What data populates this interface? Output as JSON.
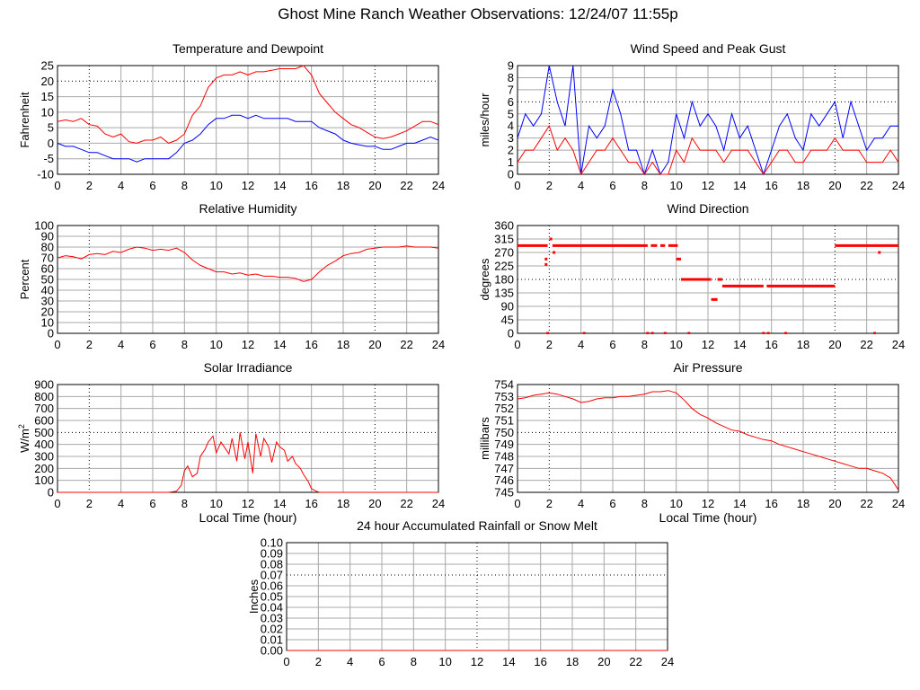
{
  "page": {
    "title": "Ghost Mine Ranch Weather Observations: 12/24/07 11:55p"
  },
  "colors": {
    "red": "#ff0000",
    "blue": "#0000ff",
    "grid": "#a8a8a8",
    "dot": "#000000"
  },
  "chart_data": [
    {
      "id": "temp",
      "type": "line",
      "title": "Temperature and Dewpoint",
      "xlabel": "",
      "ylabel": "Fahrenheit",
      "xlim": [
        0,
        24
      ],
      "ylim": [
        -10,
        25
      ],
      "xticks": [
        "0",
        "2",
        "4",
        "6",
        "8",
        "10",
        "12",
        "14",
        "16",
        "18",
        "20",
        "22",
        "24"
      ],
      "yticks": [
        "25",
        "20",
        "15",
        "10",
        "5",
        "0",
        "-5",
        "-10"
      ],
      "grid": true,
      "series": [
        {
          "name": "Temperature",
          "color": "#ff0000",
          "x": [
            0,
            0.5,
            1,
            1.5,
            2,
            2.5,
            3,
            3.5,
            4,
            4.5,
            5,
            5.5,
            6,
            6.5,
            7,
            7.5,
            8,
            8.5,
            9,
            9.5,
            10,
            10.5,
            11,
            11.5,
            12,
            12.5,
            13,
            13.5,
            14,
            14.5,
            15,
            15.5,
            16,
            16.5,
            17,
            17.5,
            18,
            18.5,
            19,
            19.5,
            20,
            20.5,
            21,
            21.5,
            22,
            22.5,
            23,
            23.5,
            24
          ],
          "values": [
            7,
            7.5,
            7,
            8,
            6,
            5.5,
            3,
            2,
            3,
            0.5,
            0,
            1,
            1,
            2,
            0,
            1,
            3,
            9,
            12,
            18,
            21,
            22,
            22,
            23,
            22,
            23,
            23,
            23.5,
            24,
            24,
            24,
            25,
            22,
            16,
            13,
            10,
            8,
            6,
            5,
            3.5,
            2,
            1.5,
            2,
            3,
            4,
            5.5,
            7,
            7,
            6
          ]
        },
        {
          "name": "Dewpoint",
          "color": "#0000ff",
          "x": [
            0,
            0.5,
            1,
            1.5,
            2,
            2.5,
            3,
            3.5,
            4,
            4.5,
            5,
            5.5,
            6,
            6.5,
            7,
            7.5,
            8,
            8.5,
            9,
            9.5,
            10,
            10.5,
            11,
            11.5,
            12,
            12.5,
            13,
            13.5,
            14,
            14.5,
            15,
            15.5,
            16,
            16.5,
            17,
            17.5,
            18,
            18.5,
            19,
            19.5,
            20,
            20.5,
            21,
            21.5,
            22,
            22.5,
            23,
            23.5,
            24
          ],
          "values": [
            0,
            -1,
            -1,
            -2,
            -3,
            -3,
            -4,
            -5,
            -5,
            -5,
            -6,
            -5,
            -5,
            -5,
            -5,
            -3,
            0,
            1,
            3,
            6,
            8,
            8,
            9,
            9,
            8,
            9,
            8,
            8,
            8,
            8,
            7,
            7,
            7,
            5,
            4,
            3,
            1,
            0,
            -0.5,
            -1,
            -1,
            -2,
            -2,
            -1,
            0,
            0,
            1,
            2,
            1
          ]
        }
      ]
    },
    {
      "id": "wind",
      "type": "line",
      "title": "Wind Speed and Peak Gust",
      "xlabel": "",
      "ylabel": "miles/hour",
      "xlim": [
        0,
        24
      ],
      "ylim": [
        0,
        9
      ],
      "xticks": [
        "0",
        "2",
        "4",
        "6",
        "8",
        "10",
        "12",
        "14",
        "16",
        "18",
        "20",
        "22",
        "24"
      ],
      "yticks": [
        "9",
        "8",
        "7",
        "6",
        "5",
        "4",
        "3",
        "2",
        "1",
        "0"
      ],
      "grid": true,
      "series": [
        {
          "name": "Peak Gust",
          "color": "#0000ff",
          "x": [
            0,
            0.5,
            1,
            1.5,
            2,
            2.5,
            3,
            3.5,
            4,
            4.5,
            5,
            5.5,
            6,
            6.5,
            7,
            7.5,
            8,
            8.5,
            9,
            9.5,
            10,
            10.5,
            11,
            11.5,
            12,
            12.5,
            13,
            13.5,
            14,
            14.5,
            15,
            15.5,
            16,
            16.5,
            17,
            17.5,
            18,
            18.5,
            19,
            19.5,
            20,
            20.5,
            21,
            21.5,
            22,
            22.5,
            23,
            23.5,
            24
          ],
          "values": [
            3,
            5,
            4,
            5,
            9,
            6,
            4,
            9,
            0,
            4,
            3,
            4,
            7,
            5,
            2,
            2,
            0,
            2,
            0,
            1,
            5,
            3,
            6,
            4,
            5,
            4,
            2,
            5,
            3,
            4,
            2,
            0,
            2,
            4,
            5,
            3,
            2,
            5,
            4,
            5,
            6,
            3,
            6,
            4,
            2,
            3,
            3,
            4,
            4
          ]
        },
        {
          "name": "Wind Speed",
          "color": "#ff0000",
          "x": [
            0,
            0.5,
            1,
            1.5,
            2,
            2.5,
            3,
            3.5,
            4,
            4.5,
            5,
            5.5,
            6,
            6.5,
            7,
            7.5,
            8,
            8.5,
            9,
            9.5,
            10,
            10.5,
            11,
            11.5,
            12,
            12.5,
            13,
            13.5,
            14,
            14.5,
            15,
            15.5,
            16,
            16.5,
            17,
            17.5,
            18,
            18.5,
            19,
            19.5,
            20,
            20.5,
            21,
            21.5,
            22,
            22.5,
            23,
            23.5,
            24
          ],
          "values": [
            1,
            2,
            2,
            3,
            4,
            2,
            3,
            2,
            0,
            1,
            2,
            2,
            3,
            2,
            1,
            1,
            0,
            1,
            0,
            0,
            2,
            1,
            3,
            2,
            2,
            2,
            1,
            2,
            2,
            2,
            1,
            0,
            1,
            2,
            2,
            1,
            1,
            2,
            2,
            2,
            3,
            2,
            2,
            2,
            1,
            1,
            1,
            2,
            1
          ]
        }
      ]
    },
    {
      "id": "rh",
      "type": "line",
      "title": "Relative Humidity",
      "xlabel": "",
      "ylabel": "Percent",
      "xlim": [
        0,
        24
      ],
      "ylim": [
        0,
        100
      ],
      "xticks": [
        "0",
        "2",
        "4",
        "6",
        "8",
        "10",
        "12",
        "14",
        "16",
        "18",
        "20",
        "22",
        "24"
      ],
      "yticks": [
        "100",
        "90",
        "80",
        "70",
        "60",
        "50",
        "40",
        "30",
        "20",
        "10",
        "0"
      ],
      "grid": true,
      "series": [
        {
          "name": "Relative Humidity",
          "color": "#ff0000",
          "x": [
            0,
            0.5,
            1,
            1.5,
            2,
            2.5,
            3,
            3.5,
            4,
            4.5,
            5,
            5.5,
            6,
            6.5,
            7,
            7.5,
            8,
            8.5,
            9,
            9.5,
            10,
            10.5,
            11,
            11.5,
            12,
            12.5,
            13,
            13.5,
            14,
            14.5,
            15,
            15.5,
            16,
            16.5,
            17,
            17.5,
            18,
            18.5,
            19,
            19.5,
            20,
            20.5,
            21,
            21.5,
            22,
            22.5,
            23,
            23.5,
            24
          ],
          "values": [
            70,
            72,
            71,
            69,
            73,
            74,
            73,
            76,
            75,
            78,
            80,
            79,
            77,
            78,
            77,
            79,
            75,
            68,
            63,
            60,
            57,
            57,
            55,
            56,
            54,
            55,
            53,
            53,
            52,
            52,
            51,
            48,
            50,
            57,
            63,
            67,
            72,
            74,
            75,
            78,
            79,
            80,
            80,
            80,
            81,
            80,
            80,
            80,
            79
          ]
        }
      ]
    },
    {
      "id": "wdir",
      "type": "scatter",
      "title": "Wind Direction",
      "xlabel": "",
      "ylabel": "degrees",
      "xlim": [
        0,
        24
      ],
      "ylim": [
        0,
        360
      ],
      "xticks": [
        "0",
        "2",
        "4",
        "6",
        "8",
        "10",
        "12",
        "14",
        "16",
        "18",
        "20",
        "22",
        "24"
      ],
      "yticks": [
        "360",
        "315",
        "270",
        "225",
        "180",
        "135",
        "90",
        "45",
        "0"
      ],
      "grid": true,
      "series": [
        {
          "name": "Wind Direction",
          "color": "#ff0000",
          "segments": [
            [
              0,
              1.9,
              293
            ],
            [
              2.2,
              8.2,
              293
            ],
            [
              8.4,
              8.8,
              293
            ],
            [
              9,
              9.3,
              293
            ],
            [
              9.5,
              10.1,
              293
            ],
            [
              10,
              10.3,
              248
            ],
            [
              10.3,
              12.2,
              180
            ],
            [
              12.6,
              12.9,
              180
            ],
            [
              12.2,
              12.6,
              113
            ],
            [
              12.9,
              15.5,
              158
            ],
            [
              15.7,
              20,
              158
            ],
            [
              20,
              24,
              293
            ]
          ],
          "points": [
            [
              1.8,
              248
            ],
            [
              1.8,
              230
            ],
            [
              2.1,
              315
            ],
            [
              2.3,
              270
            ],
            [
              1.9,
              0
            ],
            [
              4.2,
              0
            ],
            [
              8.2,
              0
            ],
            [
              8.5,
              0
            ],
            [
              9.3,
              0
            ],
            [
              10.8,
              0
            ],
            [
              15.5,
              0
            ],
            [
              15.8,
              0
            ],
            [
              16.9,
              0
            ],
            [
              22.5,
              0
            ],
            [
              22.8,
              270
            ]
          ]
        }
      ]
    },
    {
      "id": "solar",
      "type": "line",
      "title": "Solar Irradiance",
      "xlabel": "Local Time (hour)",
      "ylabel": "W/m",
      "ylabel_sup": "2",
      "xlim": [
        0,
        24
      ],
      "ylim": [
        0,
        900
      ],
      "xticks": [
        "0",
        "2",
        "4",
        "6",
        "8",
        "10",
        "12",
        "14",
        "16",
        "18",
        "20",
        "22",
        "24"
      ],
      "yticks": [
        "900",
        "800",
        "700",
        "600",
        "500",
        "400",
        "300",
        "200",
        "100",
        "0"
      ],
      "grid": true,
      "series": [
        {
          "name": "Solar Irradiance",
          "color": "#ff0000",
          "x": [
            0,
            2,
            4,
            6,
            7,
            7.5,
            7.8,
            8,
            8.2,
            8.5,
            8.8,
            9,
            9.3,
            9.5,
            9.8,
            10,
            10.3,
            10.5,
            10.8,
            11,
            11.3,
            11.5,
            11.8,
            12,
            12.3,
            12.5,
            12.8,
            13,
            13.3,
            13.5,
            13.8,
            14,
            14.3,
            14.5,
            14.8,
            15,
            15.3,
            15.5,
            15.8,
            16,
            16.3,
            16.5,
            17,
            18,
            20,
            22,
            24
          ],
          "values": [
            0,
            0,
            0,
            0,
            0,
            10,
            60,
            180,
            220,
            130,
            160,
            300,
            360,
            420,
            470,
            330,
            420,
            380,
            320,
            450,
            260,
            500,
            280,
            420,
            160,
            490,
            300,
            450,
            380,
            250,
            420,
            380,
            350,
            260,
            300,
            240,
            200,
            150,
            90,
            30,
            10,
            0,
            0,
            0,
            0,
            0,
            0
          ]
        }
      ]
    },
    {
      "id": "press",
      "type": "line",
      "title": "Air Pressure",
      "xlabel": "Local Time (hour)",
      "ylabel": "millibars",
      "xlim": [
        0,
        24
      ],
      "ylim": [
        745,
        754
      ],
      "xticks": [
        "0",
        "2",
        "4",
        "6",
        "8",
        "10",
        "12",
        "14",
        "16",
        "18",
        "20",
        "22",
        "24"
      ],
      "yticks": [
        "754",
        "753",
        "752",
        "751",
        "750",
        "749",
        "748",
        "747",
        "746",
        "745"
      ],
      "grid": true,
      "series": [
        {
          "name": "Air Pressure",
          "color": "#ff0000",
          "x": [
            0,
            0.5,
            1,
            1.5,
            2,
            2.5,
            3,
            3.5,
            4,
            4.5,
            5,
            5.5,
            6,
            6.5,
            7,
            7.5,
            8,
            8.5,
            9,
            9.5,
            10,
            10.5,
            11,
            11.5,
            12,
            12.5,
            13,
            13.5,
            14,
            14.5,
            15,
            15.5,
            16,
            16.5,
            17,
            17.5,
            18,
            18.5,
            19,
            19.5,
            20,
            20.5,
            21,
            21.5,
            22,
            22.5,
            23,
            23.5,
            24
          ],
          "values": [
            752.8,
            752.9,
            753.1,
            753.2,
            753.3,
            753.2,
            753,
            752.8,
            752.5,
            752.6,
            752.8,
            752.9,
            752.9,
            753,
            753,
            753.1,
            753.2,
            753.4,
            753.4,
            753.5,
            753.3,
            752.7,
            752,
            751.5,
            751.2,
            750.8,
            750.5,
            750.2,
            750.1,
            749.8,
            749.6,
            749.4,
            749.3,
            749,
            748.8,
            748.6,
            748.4,
            748.2,
            748,
            747.8,
            747.6,
            747.4,
            747.2,
            747,
            747,
            746.8,
            746.6,
            746.2,
            745.2
          ]
        }
      ]
    },
    {
      "id": "rain",
      "type": "line",
      "title": "24 hour Accumulated Rainfall or Snow Melt",
      "xlabel": "",
      "ylabel": "Inches",
      "xlim": [
        0,
        24
      ],
      "ylim": [
        0,
        0.1
      ],
      "xticks": [
        "0",
        "2",
        "4",
        "6",
        "8",
        "10",
        "12",
        "14",
        "16",
        "18",
        "20",
        "22",
        "24"
      ],
      "yticks": [
        "0.10",
        "0.09",
        "0.08",
        "0.07",
        "0.06",
        "0.05",
        "0.04",
        "0.03",
        "0.02",
        "0.01",
        "0.00"
      ],
      "grid": true,
      "series": [
        {
          "name": "Rainfall",
          "color": "#ff0000",
          "x": [
            0,
            24
          ],
          "values": [
            0,
            0
          ]
        }
      ]
    }
  ]
}
